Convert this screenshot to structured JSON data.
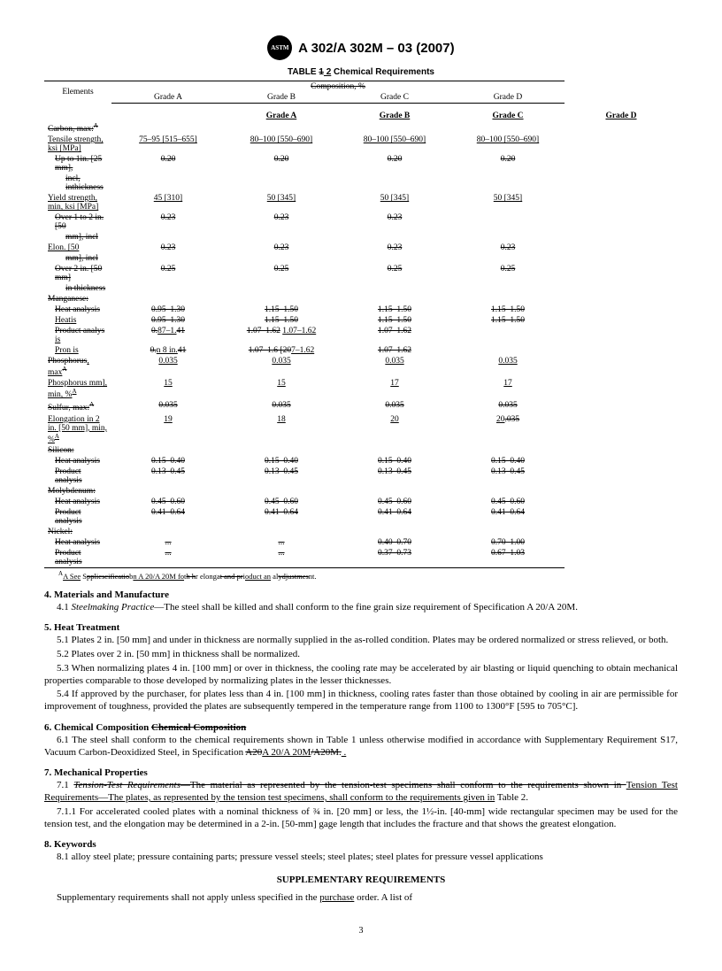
{
  "header": {
    "logo_text": "ASTM",
    "spec": "A 302/A 302M – 03  (2007)"
  },
  "table": {
    "caption_prefix": "TABLE ",
    "caption_struck": "1",
    "caption_underlined": " 2",
    "caption_suffix": "   Chemical Requirements",
    "comp_header_struck": "Composition, %",
    "elements_label": "Elements",
    "grades": [
      "Grade A",
      "Grade B",
      "Grade C",
      "Grade D"
    ],
    "rows": [
      {
        "label": "Carbon, max",
        "sup": "A",
        "struck": true,
        "struck_suffix": ":",
        "vals": [
          "",
          "",
          "",
          ""
        ]
      },
      {
        "label": "Tensile strength, ksi [MPa]",
        "uline": true,
        "vals_uline": true,
        "vals": [
          "75–95  [515–655]",
          "80–100  [550–690]",
          "80–100  [550–690]",
          "80–100  [550–690]"
        ]
      },
      {
        "label": "Up to 1in. [25 mm],",
        "struck": true,
        "indent": 1,
        "vals_struck": true,
        "vals": [
          "0.20",
          "0.20",
          "0.20",
          "0.20"
        ]
      },
      {
        "label": "incl, inthickness",
        "struck": true,
        "indent": 2,
        "vals": [
          "",
          "",
          "",
          ""
        ]
      },
      {
        "label": "Yield strength, min, ksi [MPa]",
        "uline": true,
        "vals_uline": true,
        "vals": [
          "45  [310]",
          "50  [345]",
          "50  [345]",
          "50  [345]"
        ]
      },
      {
        "label": "Over 1 to 2 in. [50",
        "struck": true,
        "indent": 1,
        "vals_struck": true,
        "vals": [
          "0.23",
          "0.23",
          "0.23",
          ""
        ]
      },
      {
        "label": "mm], incl",
        "struck": true,
        "indent": 2,
        "vals": [
          "",
          "",
          "",
          ""
        ]
      },
      {
        "label": "Elon. [50",
        "uline": true,
        "vals_struck": true,
        "vals": [
          "0.23",
          "0.23",
          "0.23",
          "0.23"
        ]
      },
      {
        "label": "mm], incl",
        "struck": true,
        "indent": 2,
        "vals": [
          "",
          "",
          "",
          ""
        ]
      },
      {
        "label": "Over 2 in. [50 mm]",
        "struck": true,
        "indent": 1,
        "vals_struck": true,
        "vals": [
          "0.25",
          "0.25",
          "0.25",
          "0.25"
        ]
      },
      {
        "label": "in thickness",
        "struck": true,
        "indent": 2,
        "vals": [
          "",
          "",
          "",
          ""
        ]
      },
      {
        "label": "Manganese:",
        "struck": true,
        "vals": [
          "",
          "",
          "",
          ""
        ]
      },
      {
        "label": "Heat analysis",
        "struck": true,
        "indent": 1,
        "vals_struck": true,
        "vals": [
          "0.95–1.30",
          "1.15–1.50",
          "1.15–1.50",
          "1.15–1.50"
        ]
      },
      {
        "label": "Heat",
        "uline": true,
        "uline_suffix": "is",
        "indent": 1,
        "vals_struck": true,
        "vals": [
          "0.95–1.30",
          "1.15–1.50",
          "1.15–1.50",
          "1.15–1.50"
        ]
      },
      {
        "label": "Product analys ",
        "struck": true,
        "uline_suffix": "is",
        "indent": 1,
        "vals_html": [
          "<span class='strike'>0.</span><span class='uline'>87–1.</span><span class='strike'>41</span>",
          "<span class='strike'>1.07–1.62</span>  <span class='uline'>1.07–1.62</span>",
          "<span class='strike'>1.07–1.62</span>",
          ""
        ]
      },
      {
        "label": "Pro",
        "uline": true,
        "uline_suffix": "n is",
        "indent": 1,
        "vals_html": [
          "<span class='strike'>0.</span><span class='uline'>n 8 in.</span><span class='strike'>41</span>",
          "<span class='strike'>1.07–1.6 [20</span><span class='uline'>7–1.62</span>",
          "<span class='strike'>1.07–1.62</span>",
          ""
        ]
      },
      {
        "label": "Phosphorus",
        "struck": true,
        "uline_suffix": ", max",
        "sup": "A",
        "vals_uline": true,
        "vals": [
          "0.035",
          "0.035",
          "0.035",
          "0.035"
        ]
      },
      {
        "label": "Phosphorus mm], min, %",
        "uline": true,
        "sup": "A",
        "vals_uline": true,
        "vals": [
          "15",
          "15",
          "17",
          "17"
        ]
      },
      {
        "label": "Sulfur, max:",
        "struck": true,
        "sup": "A",
        "vals_struck": true,
        "vals": [
          "0.035",
          "0.035",
          "0.035",
          "0.035"
        ]
      },
      {
        "label": "Elongation in 2 in. [50 mm], min, %",
        "uline": true,
        "sup": "A",
        "vals_html": [
          "<span class='uline'>19</span>",
          "<span class='uline'>18</span>",
          "<span class='uline'>20</span>",
          "<span class='uline'>20</span><span class='strike'>.035</span>"
        ]
      },
      {
        "label": "Silicon:",
        "struck": true,
        "vals": [
          "",
          "",
          "",
          ""
        ]
      },
      {
        "label": "Heat analysis",
        "struck": true,
        "indent": 1,
        "vals_struck": true,
        "vals": [
          "0.15–0.40",
          "0.15–0.40",
          "0.15–0.40",
          "0.15–0.40"
        ]
      },
      {
        "label": "Product analysis",
        "struck": true,
        "indent": 1,
        "vals_struck": true,
        "vals": [
          "0.13–0.45",
          "0.13–0.45",
          "0.13–0.45",
          "0.13–0.45"
        ]
      },
      {
        "label": "Molybdenum:",
        "struck": true,
        "vals": [
          "",
          "",
          "",
          ""
        ]
      },
      {
        "label": "Heat analysis",
        "struck": true,
        "indent": 1,
        "vals_struck": true,
        "vals": [
          "0.45–0.60",
          "0.45–0.60",
          "0.45–0.60",
          "0.45–0.60"
        ]
      },
      {
        "label": "Product analysis",
        "struck": true,
        "indent": 1,
        "vals_struck": true,
        "vals": [
          "0.41–0.64",
          "0.41–0.64",
          "0.41–0.64",
          "0.41–0.64"
        ]
      },
      {
        "label": "Nickel:",
        "struck": true,
        "vals": [
          "",
          "",
          "",
          ""
        ]
      },
      {
        "label": "Heat analysis",
        "struck": true,
        "indent": 1,
        "vals_html": [
          "<span class='strike'>...</span>",
          "<span class='strike'>...</span>",
          "<span class='strike'>0.40–0.70</span>",
          "<span class='strike'>0.70–1.00</span>"
        ]
      },
      {
        "label": "Product analysis",
        "struck": true,
        "indent": 1,
        "vals_html": [
          "<span class='strike'>...</span>",
          "<span class='strike'>...</span>",
          "<span class='strike'>0.37–0.73</span>",
          "<span class='strike'>0.67–1.03</span>"
        ]
      }
    ],
    "footnote_html": "<span class='sup'>A</span><span class='uline'>A See</span> S<span class='strike'>ppliescificatio</span>b<span class='uline'>n A 20/A 20M fo</span>t<span class='strike'>h h</span>r elonga<span class='strike'>t and pr</span>i<span class='uline'>oduct an</span> al<span class='strike'>ydjustmes</span>nt."
  },
  "sections": {
    "s4_title": "4.  Materials and Manufacture",
    "s4_1": "4.1  Steelmaking Practice—The steel shall be killed and shall conform to the fine grain size requirement of Specification A 20/A 20M.",
    "s5_title": "5.  Heat Treatment",
    "s5_1": "5.1  Plates 2 in. [50 mm] and under in thickness are normally supplied in the as-rolled condition. Plates may be ordered normalized or stress relieved, or both.",
    "s5_2": "5.2  Plates over 2 in. [50 mm] in thickness shall be normalized.",
    "s5_3": "5.3  When normalizing plates 4 in. [100 mm] or over in thickness, the cooling rate may be accelerated by air blasting or liquid quenching to obtain mechanical properties comparable to those developed by normalizing plates in the lesser thicknesses.",
    "s5_4": "5.4  If approved by the purchaser, for plates less than 4 in. [100 mm] in thickness, cooling rates faster than those obtained by cooling in air are permissible for improvement of toughness, provided the plates are subsequently tempered in the temperature range from 1100 to 1300°F [595 to 705°C].",
    "s6_title_prefix": "6.  Chemical Composition ",
    "s6_title_struck": "Chemical Composition",
    "s6_1_prefix": "6.1  The steel shall conform to the chemical requirements shown in Table 1 unless otherwise modified in accordance with Supplementary Requirement S17, Vacuum Carbon-Deoxidized Steel, in Specification ",
    "s6_1_struck1": "A20",
    "s6_1_uline": "A 20/A 20M",
    "s6_1_struck2": "/A20M.",
    "s6_1_suffix": " .",
    "s7_title": "7.  Mechanical Properties",
    "s7_1_a_struck": "7.1  Tension-Test Requirements—The material as represented by the tension-test specimens shall conform to the requirements shown in ",
    "s7_1_b_uline": "Tension Test Requirements—The plates, as represented by the tension test specimens, shall conform to the requirements given in",
    "s7_1_c": " Table 2.",
    "s7_1_1": "7.1.1  For accelerated cooled plates with a nominal thickness of ¾ in. [20 mm] or less, the 1½-in. [40-mm] wide rectangular specimen may be used for the tension test, and the elongation may be determined in a 2-in. [50-mm] gage length that includes the fracture and that shows the greatest elongation.",
    "s8_title": "8.  Keywords",
    "s8_1": "8.1  alloy steel plate; pressure containing parts; pressure vessel steels; steel plates; steel plates for pressure vessel applications",
    "supp_heading": "SUPPLEMENTARY REQUIREMENTS",
    "supp_text_a": "Supplementary requirements shall not apply unless specified in the ",
    "supp_text_uline": "purchase",
    "supp_text_b": " order. A list of"
  },
  "page_number": "3"
}
